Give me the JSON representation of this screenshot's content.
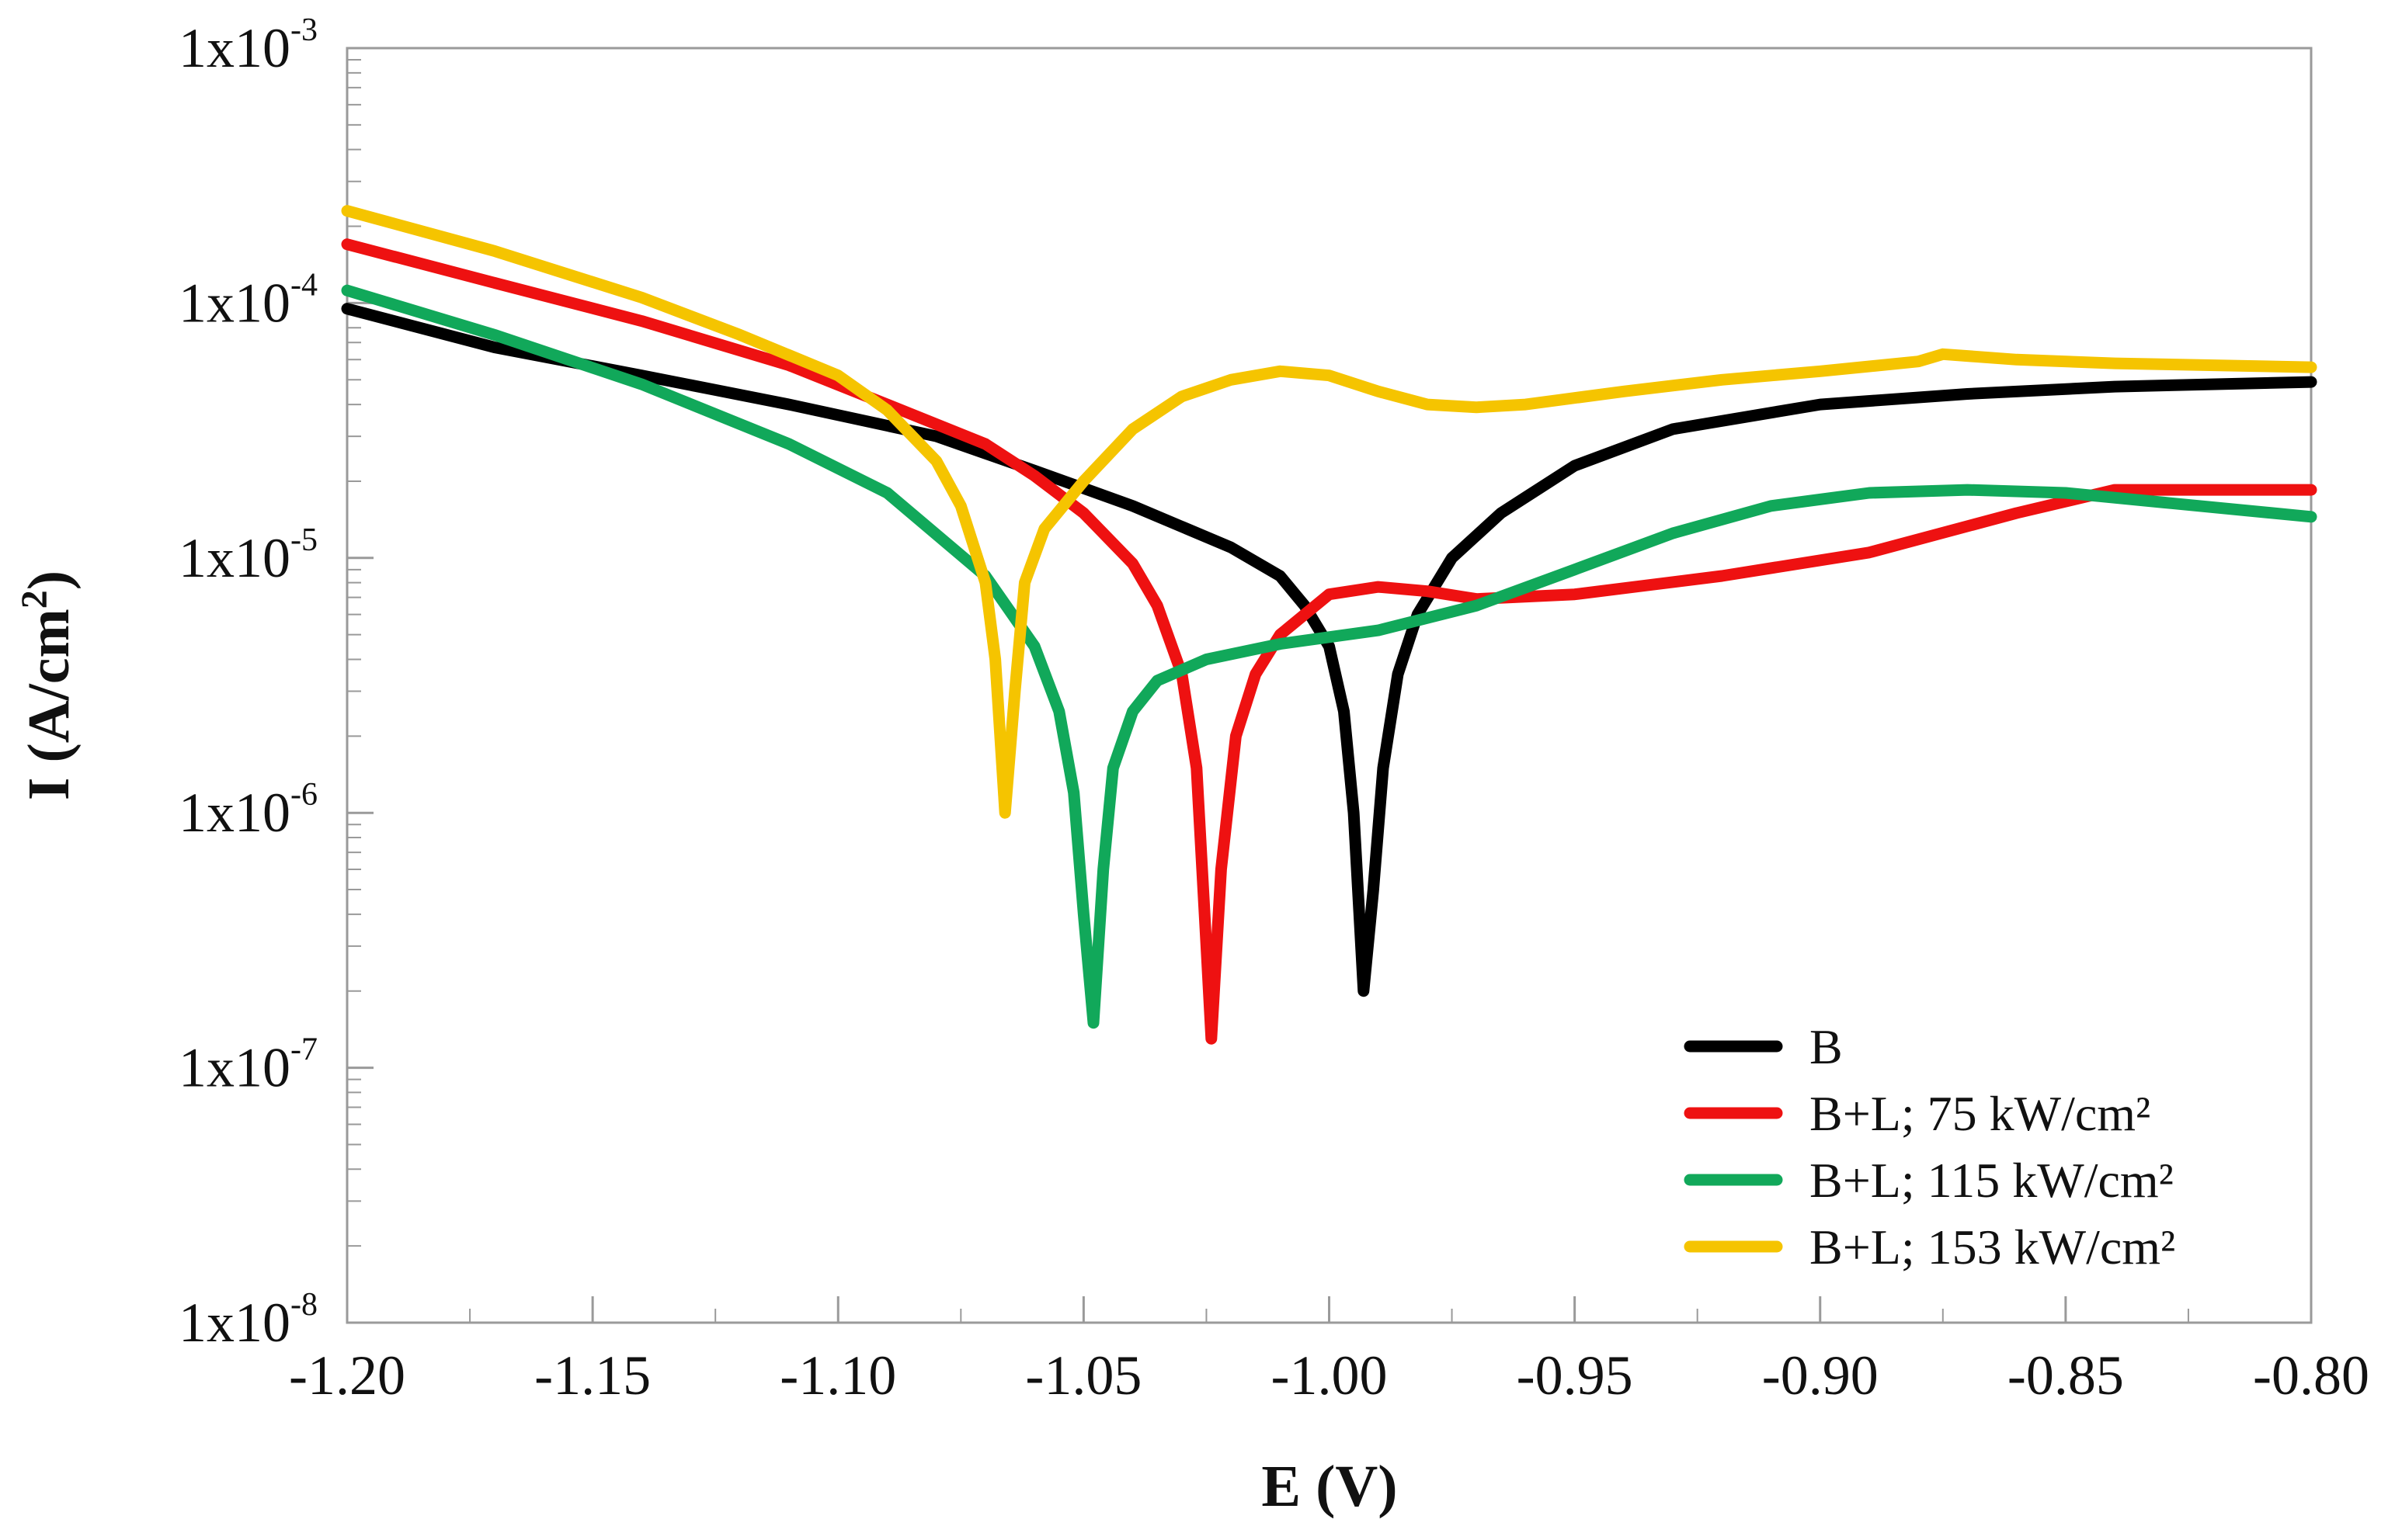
{
  "chart_data": {
    "type": "line",
    "title": "",
    "xlabel": "E (V)",
    "ylabel_main": "I (A/cm",
    "ylabel_sup": "2",
    "ylabel_close": ")",
    "xscale": "linear",
    "yscale": "log",
    "xlim": [
      -1.2,
      -0.8
    ],
    "ylim": [
      1e-08,
      0.001
    ],
    "grid": false,
    "legend_position": "bottom-right",
    "x_ticks": [
      {
        "value": -1.2,
        "label": "-1.20"
      },
      {
        "value": -1.15,
        "label": "-1.15"
      },
      {
        "value": -1.1,
        "label": "-1.10"
      },
      {
        "value": -1.05,
        "label": "-1.05"
      },
      {
        "value": -1.0,
        "label": "-1.00"
      },
      {
        "value": -0.95,
        "label": "-0.95"
      },
      {
        "value": -0.9,
        "label": "-0.90"
      },
      {
        "value": -0.85,
        "label": "-0.85"
      },
      {
        "value": -0.8,
        "label": "-0.80"
      }
    ],
    "y_ticks": [
      {
        "value": 1e-08,
        "base": "1x10",
        "exp": "-8"
      },
      {
        "value": 1e-07,
        "base": "1x10",
        "exp": "-7"
      },
      {
        "value": 1e-06,
        "base": "1x10",
        "exp": "-6"
      },
      {
        "value": 1e-05,
        "base": "1x10",
        "exp": "-5"
      },
      {
        "value": 0.0001,
        "base": "1x10",
        "exp": "-4"
      },
      {
        "value": 0.001,
        "base": "1x10",
        "exp": "-3"
      }
    ],
    "series": [
      {
        "name": "B",
        "color": "#000000",
        "points": [
          [
            -1.2,
            9.5e-05
          ],
          [
            -1.17,
            6.7e-05
          ],
          [
            -1.14,
            5.2e-05
          ],
          [
            -1.11,
            4e-05
          ],
          [
            -1.08,
            3e-05
          ],
          [
            -1.06,
            2.2e-05
          ],
          [
            -1.04,
            1.6e-05
          ],
          [
            -1.02,
            1.1e-05
          ],
          [
            -1.01,
            8.5e-06
          ],
          [
            -1.005,
            6.5e-06
          ],
          [
            -1.0,
            4.5e-06
          ],
          [
            -0.997,
            2.5e-06
          ],
          [
            -0.995,
            1e-06
          ],
          [
            -0.993,
            2e-07
          ],
          [
            -0.991,
            5e-07
          ],
          [
            -0.989,
            1.5e-06
          ],
          [
            -0.986,
            3.5e-06
          ],
          [
            -0.982,
            6e-06
          ],
          [
            -0.975,
            1e-05
          ],
          [
            -0.965,
            1.5e-05
          ],
          [
            -0.95,
            2.3e-05
          ],
          [
            -0.93,
            3.2e-05
          ],
          [
            -0.9,
            4e-05
          ],
          [
            -0.87,
            4.4e-05
          ],
          [
            -0.84,
            4.7e-05
          ],
          [
            -0.8,
            4.9e-05
          ]
        ]
      },
      {
        "name": "B+L; 75 kW/cm²",
        "color": "#ee1111",
        "points": [
          [
            -1.2,
            0.00017
          ],
          [
            -1.17,
            0.00012
          ],
          [
            -1.14,
            8.5e-05
          ],
          [
            -1.11,
            5.7e-05
          ],
          [
            -1.09,
            4e-05
          ],
          [
            -1.07,
            2.8e-05
          ],
          [
            -1.06,
            2.1e-05
          ],
          [
            -1.05,
            1.5e-05
          ],
          [
            -1.04,
            9.5e-06
          ],
          [
            -1.035,
            6.5e-06
          ],
          [
            -1.03,
            3.5e-06
          ],
          [
            -1.027,
            1.5e-06
          ],
          [
            -1.025,
            3e-07
          ],
          [
            -1.024,
            1.3e-07
          ],
          [
            -1.022,
            6e-07
          ],
          [
            -1.019,
            2e-06
          ],
          [
            -1.015,
            3.5e-06
          ],
          [
            -1.01,
            5e-06
          ],
          [
            -1.0,
            7.2e-06
          ],
          [
            -0.99,
            7.7e-06
          ],
          [
            -0.98,
            7.4e-06
          ],
          [
            -0.97,
            6.9e-06
          ],
          [
            -0.95,
            7.2e-06
          ],
          [
            -0.92,
            8.5e-06
          ],
          [
            -0.89,
            1.05e-05
          ],
          [
            -0.86,
            1.5e-05
          ],
          [
            -0.84,
            1.85e-05
          ],
          [
            -0.8,
            1.85e-05
          ]
        ]
      },
      {
        "name": "B+L; 115 kW/cm²",
        "color": "#11a85a",
        "points": [
          [
            -1.2,
            0.000112
          ],
          [
            -1.17,
            7.5e-05
          ],
          [
            -1.14,
            4.8e-05
          ],
          [
            -1.11,
            2.8e-05
          ],
          [
            -1.09,
            1.8e-05
          ],
          [
            -1.07,
            8.5e-06
          ],
          [
            -1.06,
            4.5e-06
          ],
          [
            -1.055,
            2.5e-06
          ],
          [
            -1.052,
            1.2e-06
          ],
          [
            -1.05,
            4e-07
          ],
          [
            -1.048,
            1.5e-07
          ],
          [
            -1.046,
            6e-07
          ],
          [
            -1.044,
            1.5e-06
          ],
          [
            -1.04,
            2.5e-06
          ],
          [
            -1.035,
            3.3e-06
          ],
          [
            -1.025,
            4e-06
          ],
          [
            -1.01,
            4.6e-06
          ],
          [
            -0.99,
            5.2e-06
          ],
          [
            -0.97,
            6.5e-06
          ],
          [
            -0.95,
            9e-06
          ],
          [
            -0.93,
            1.25e-05
          ],
          [
            -0.91,
            1.6e-05
          ],
          [
            -0.89,
            1.8e-05
          ],
          [
            -0.87,
            1.85e-05
          ],
          [
            -0.85,
            1.8e-05
          ],
          [
            -0.83,
            1.65e-05
          ],
          [
            -0.8,
            1.45e-05
          ]
        ]
      },
      {
        "name": "B+L; 153 kW/cm²",
        "color": "#f5c400",
        "points": [
          [
            -1.2,
            0.00023
          ],
          [
            -1.17,
            0.00016
          ],
          [
            -1.14,
            0.000105
          ],
          [
            -1.12,
            7.5e-05
          ],
          [
            -1.1,
            5.2e-05
          ],
          [
            -1.09,
            3.8e-05
          ],
          [
            -1.08,
            2.4e-05
          ],
          [
            -1.075,
            1.6e-05
          ],
          [
            -1.07,
            8e-06
          ],
          [
            -1.068,
            4e-06
          ],
          [
            -1.066,
            1e-06
          ],
          [
            -1.064,
            3e-06
          ],
          [
            -1.062,
            8e-06
          ],
          [
            -1.058,
            1.3e-05
          ],
          [
            -1.05,
            2e-05
          ],
          [
            -1.04,
            3.2e-05
          ],
          [
            -1.03,
            4.3e-05
          ],
          [
            -1.02,
            5e-05
          ],
          [
            -1.01,
            5.4e-05
          ],
          [
            -1.0,
            5.2e-05
          ],
          [
            -0.99,
            4.5e-05
          ],
          [
            -0.98,
            4e-05
          ],
          [
            -0.97,
            3.9e-05
          ],
          [
            -0.96,
            4e-05
          ],
          [
            -0.94,
            4.5e-05
          ],
          [
            -0.92,
            5e-05
          ],
          [
            -0.9,
            5.4e-05
          ],
          [
            -0.88,
            5.9e-05
          ],
          [
            -0.875,
            6.3e-05
          ],
          [
            -0.86,
            6e-05
          ],
          [
            -0.84,
            5.8e-05
          ],
          [
            -0.8,
            5.6e-05
          ]
        ]
      }
    ]
  }
}
